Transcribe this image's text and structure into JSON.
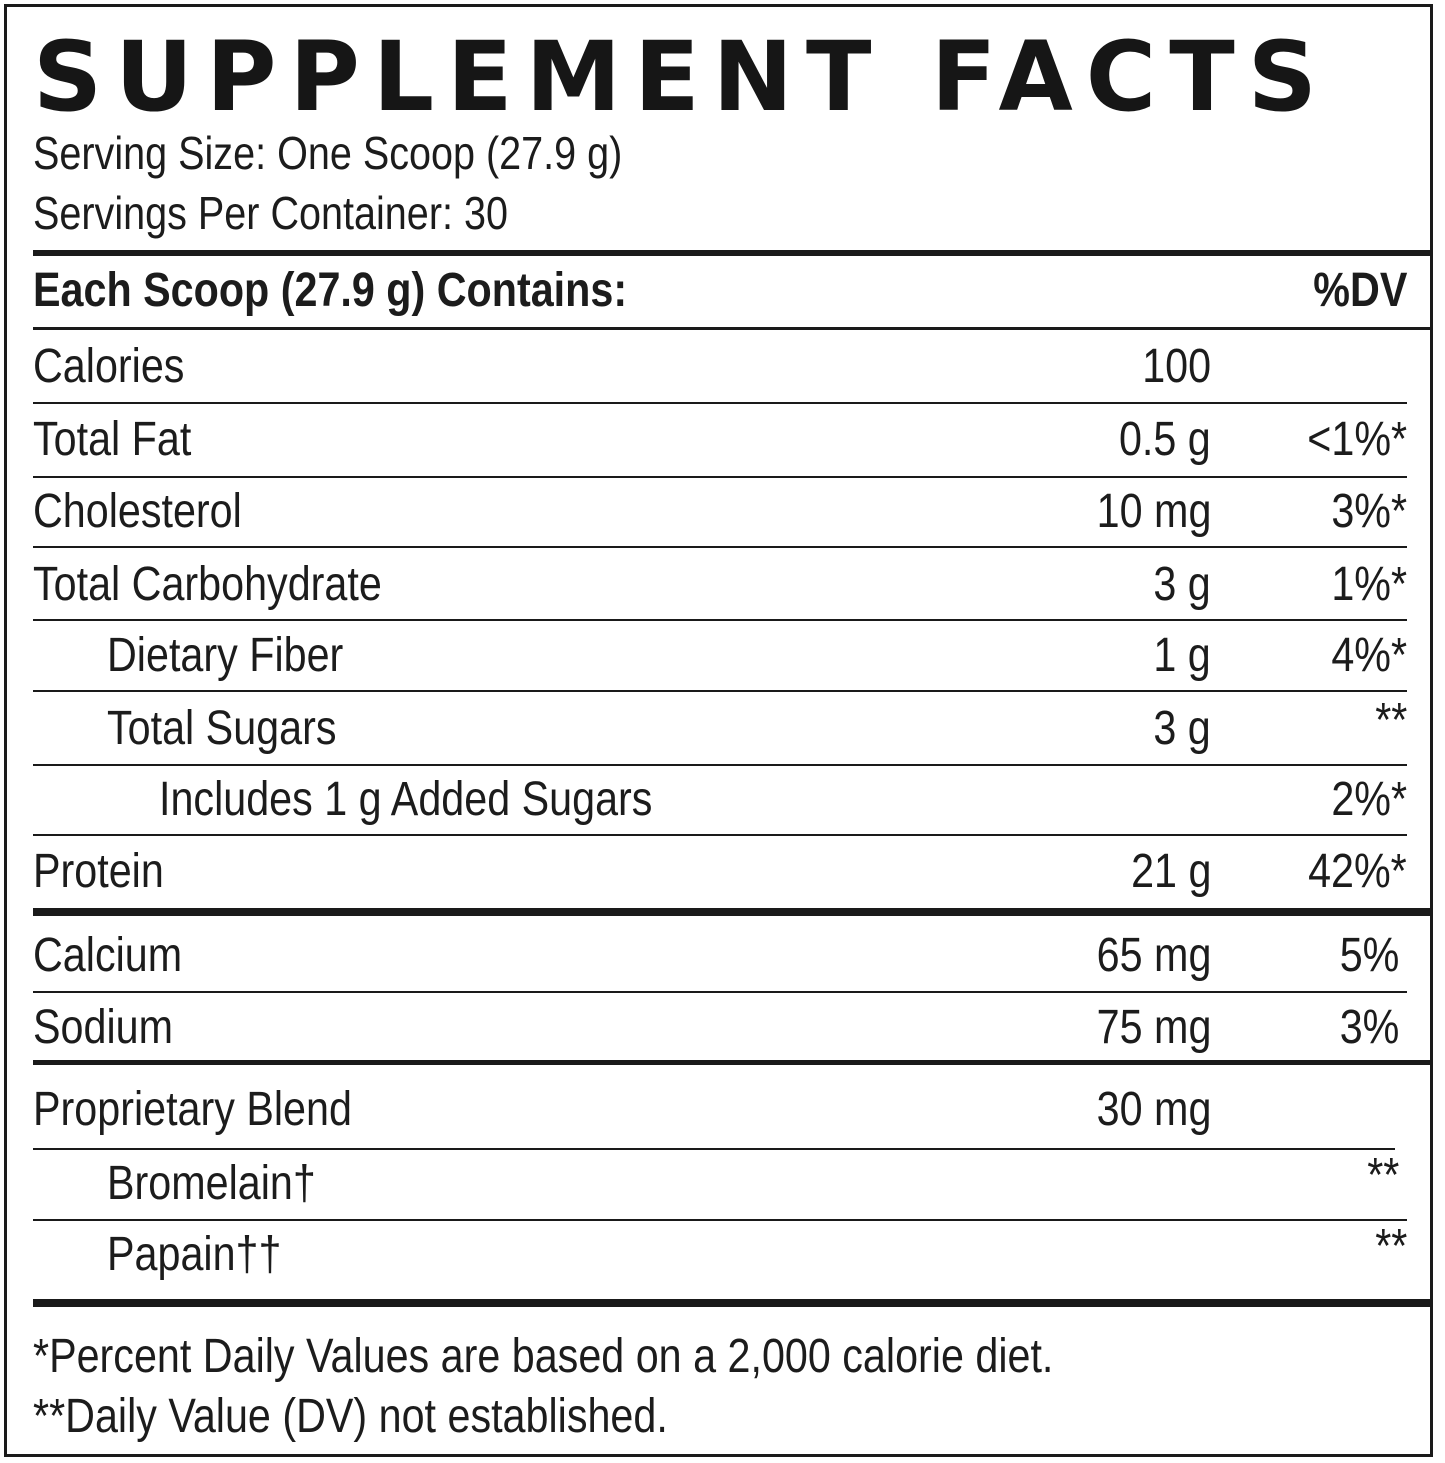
{
  "label": {
    "title": "SUPPLEMENT FACTS",
    "serving_size": "Serving Size: One Scoop (27.9 g)",
    "servings_per_container": "Servings Per Container: 30",
    "header_left": "Each Scoop (27.9 g) Contains:",
    "header_right": "%DV"
  },
  "nutrients": [
    {
      "name": "Calories",
      "amount": "100",
      "dv": ""
    },
    {
      "name": "Total Fat",
      "amount": "0.5 g",
      "dv": "<1%*"
    },
    {
      "name": "Cholesterol",
      "amount": "10 mg",
      "dv": "3%*"
    },
    {
      "name": "Total Carbohydrate",
      "amount": "3 g",
      "dv": "1%*"
    },
    {
      "name": "Dietary Fiber",
      "amount": "1 g",
      "dv": "4%*"
    },
    {
      "name": "Total Sugars",
      "amount": "3 g",
      "dv": "**"
    },
    {
      "name": "Includes 1 g Added Sugars",
      "amount": "",
      "dv": "2%*"
    },
    {
      "name": "Protein",
      "amount": "21 g",
      "dv": "42%*"
    }
  ],
  "minerals": [
    {
      "name": "Calcium",
      "amount": "65 mg",
      "dv": "5%"
    },
    {
      "name": "Sodium",
      "amount": "75 mg",
      "dv": "3%"
    }
  ],
  "blend": [
    {
      "name": "Proprietary Blend",
      "amount": "30 mg",
      "dv": ""
    },
    {
      "name": "Bromelain†",
      "amount": "",
      "dv": "**"
    },
    {
      "name": "Papain††",
      "amount": "",
      "dv": "**"
    }
  ],
  "footnotes": {
    "percent_dv": "*Percent Daily Values are based on a 2,000 calorie diet.",
    "dv_not_established": "**Daily Value (DV) not established."
  }
}
